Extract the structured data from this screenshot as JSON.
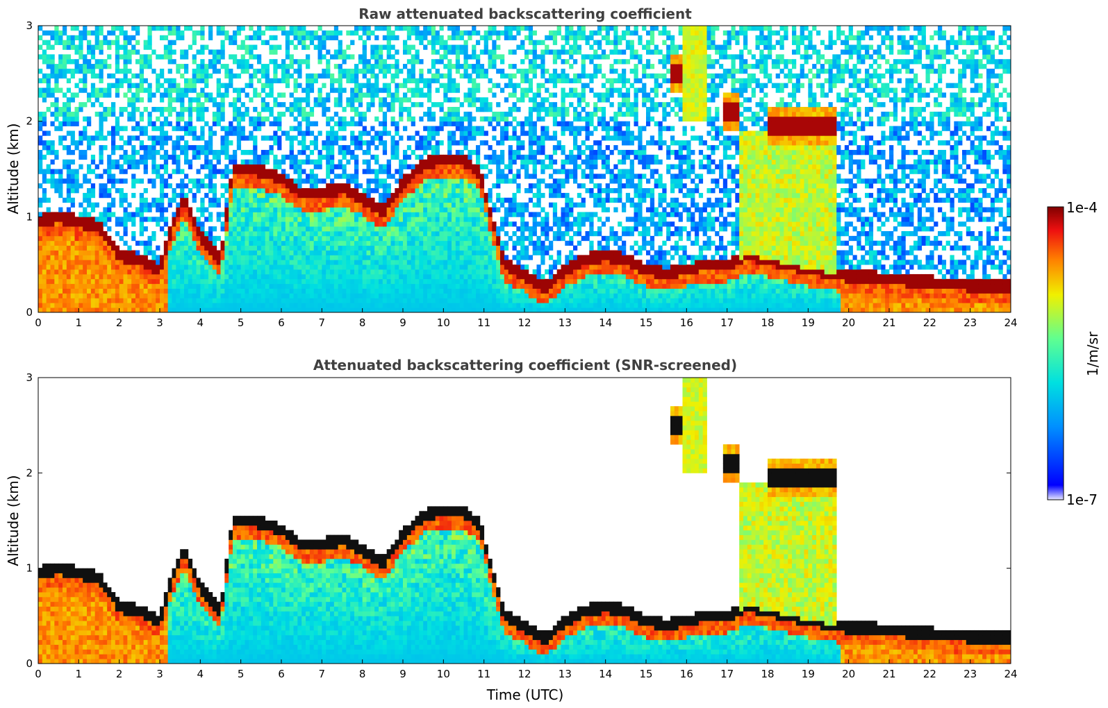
{
  "chart_data": [
    {
      "type": "heatmap",
      "title": "Raw attenuated backscattering coefficient",
      "xlabel": "",
      "ylabel": "Altitude (km)",
      "xlim": [
        0,
        24
      ],
      "ylim": [
        0,
        3
      ],
      "x_ticks": [
        "0",
        "1",
        "2",
        "3",
        "4",
        "5",
        "6",
        "7",
        "8",
        "9",
        "10",
        "11",
        "12",
        "13",
        "14",
        "15",
        "16",
        "17",
        "18",
        "19",
        "20",
        "21",
        "22",
        "23",
        "24"
      ],
      "y_ticks": [
        "0",
        "1",
        "2",
        "3"
      ],
      "screened": false
    },
    {
      "type": "heatmap",
      "title": "Attenuated backscattering coefficient (SNR-screened)",
      "xlabel": "Time (UTC)",
      "ylabel": "Altitude (km)",
      "xlim": [
        0,
        24
      ],
      "ylim": [
        0,
        3
      ],
      "x_ticks": [
        "0",
        "1",
        "2",
        "3",
        "4",
        "5",
        "6",
        "7",
        "8",
        "9",
        "10",
        "11",
        "12",
        "13",
        "14",
        "15",
        "16",
        "17",
        "18",
        "19",
        "20",
        "21",
        "22",
        "23",
        "24"
      ],
      "y_ticks": [
        "0",
        "1",
        "2",
        "3"
      ],
      "screened": true
    }
  ],
  "colorbar": {
    "label": "1/m/sr",
    "max_label": "1e-4",
    "min_label": "1e-7",
    "range": [
      1e-07,
      0.0001
    ],
    "scale": "log"
  },
  "features": {
    "boundary_layer_top": [
      [
        0,
        0.95
      ],
      [
        0.5,
        1.0
      ],
      [
        1.0,
        0.95
      ],
      [
        1.5,
        0.9
      ],
      [
        2.0,
        0.6
      ],
      [
        2.5,
        0.55
      ],
      [
        3.0,
        0.45
      ],
      [
        3.3,
        0.9
      ],
      [
        3.6,
        1.2
      ],
      [
        4.0,
        0.8
      ],
      [
        4.5,
        0.55
      ],
      [
        4.8,
        1.5
      ],
      [
        5.2,
        1.5
      ],
      [
        5.7,
        1.45
      ],
      [
        6.0,
        1.4
      ],
      [
        6.5,
        1.25
      ],
      [
        7.0,
        1.25
      ],
      [
        7.5,
        1.3
      ],
      [
        8.0,
        1.2
      ],
      [
        8.5,
        1.05
      ],
      [
        9.0,
        1.35
      ],
      [
        9.5,
        1.55
      ],
      [
        10.0,
        1.6
      ],
      [
        10.5,
        1.6
      ],
      [
        10.9,
        1.45
      ],
      [
        11.5,
        0.5
      ],
      [
        12.0,
        0.4
      ],
      [
        12.5,
        0.25
      ],
      [
        13.0,
        0.45
      ],
      [
        13.5,
        0.55
      ],
      [
        14.0,
        0.6
      ],
      [
        14.5,
        0.55
      ],
      [
        15.0,
        0.45
      ],
      [
        15.5,
        0.4
      ],
      [
        16.0,
        0.45
      ],
      [
        16.5,
        0.5
      ],
      [
        17.0,
        0.5
      ],
      [
        17.5,
        0.6
      ],
      [
        18.0,
        0.55
      ],
      [
        18.5,
        0.5
      ],
      [
        19.0,
        0.45
      ],
      [
        19.5,
        0.42
      ],
      [
        20.0,
        0.38
      ],
      [
        20.5,
        0.38
      ],
      [
        21.0,
        0.35
      ],
      [
        21.5,
        0.33
      ],
      [
        22.0,
        0.32
      ],
      [
        22.5,
        0.3
      ],
      [
        23.0,
        0.28
      ],
      [
        24.0,
        0.27
      ]
    ],
    "elevated_layers": [
      {
        "x0": 18.0,
        "x1": 19.7,
        "y": 1.95
      },
      {
        "x0": 15.6,
        "x1": 15.9,
        "y": 2.5
      },
      {
        "x0": 16.9,
        "x1": 17.3,
        "y": 2.1
      }
    ]
  }
}
